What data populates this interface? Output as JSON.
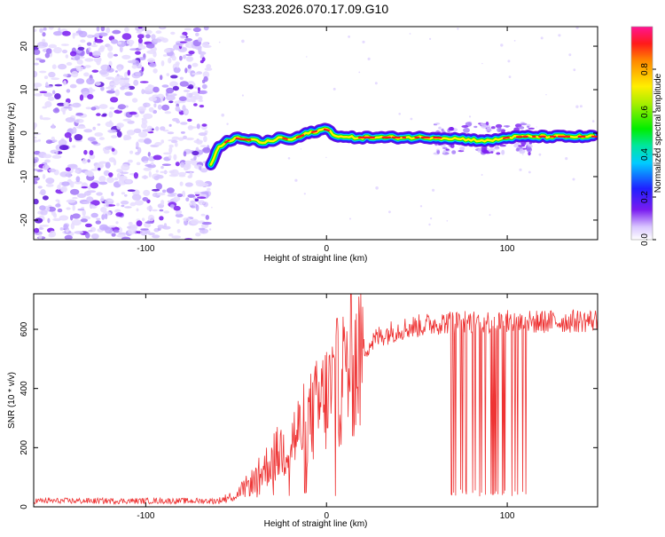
{
  "title": "S233.2026.070.17.09.G10",
  "colors": {
    "trace": "#ee3333",
    "cb_low": "#ffffff",
    "scatter_purple": "#7a1cf0"
  },
  "chart_data": [
    {
      "type": "heatmap",
      "xlabel": "Height of straight line (km)",
      "ylabel": "Frequency (Hz)",
      "xlim": [
        -162,
        150
      ],
      "ylim": [
        -24.5,
        24.5
      ],
      "xticks": [
        -100,
        0,
        100
      ],
      "yticks": [
        -20,
        -10,
        0,
        10,
        20
      ],
      "colorbar": {
        "label": "Normalized spectral amplitude",
        "ticks": [
          "0.0",
          "0.2",
          "0.4",
          "0.6",
          "0.8"
        ],
        "range": [
          0,
          1
        ]
      },
      "ridge": {
        "x": [
          -64,
          -60,
          -55,
          -50,
          -45,
          -40,
          -35,
          -30,
          -25,
          -20,
          -15,
          -10,
          -5,
          0,
          5,
          10,
          20,
          40,
          60,
          70,
          80,
          90,
          100,
          110,
          120,
          130,
          140,
          148
        ],
        "y": [
          -7.5,
          -3.5,
          -1.8,
          -1.2,
          -1.5,
          -1.6,
          -2.2,
          -1.7,
          -1.0,
          -1.6,
          -0.8,
          0.0,
          0.5,
          1.0,
          -0.5,
          -1.0,
          -1.0,
          -1.0,
          -1.0,
          -1.2,
          -1.5,
          -1.8,
          -1.0,
          -0.8,
          -0.8,
          -0.8,
          -0.8,
          -0.8
        ]
      }
    },
    {
      "type": "line",
      "xlabel": "Height of straight line (km)",
      "ylabel": "SNR (10 * v/v)",
      "xlim": [
        -162,
        150
      ],
      "ylim": [
        0,
        720
      ],
      "xticks": [
        -100,
        0,
        100
      ],
      "yticks": [
        0,
        200,
        400,
        600
      ],
      "trend": {
        "x": [
          -162,
          -100,
          -60,
          -50,
          -40,
          -30,
          -20,
          -10,
          0,
          10,
          20,
          30,
          40,
          50,
          60,
          70,
          80,
          100,
          120,
          150
        ],
        "y": [
          20,
          20,
          20,
          40,
          90,
          160,
          220,
          290,
          370,
          450,
          530,
          580,
          600,
          610,
          620,
          625,
          625,
          625,
          625,
          630
        ]
      },
      "spikes_region": [
        68,
        118
      ],
      "spike_floor": 35
    }
  ]
}
